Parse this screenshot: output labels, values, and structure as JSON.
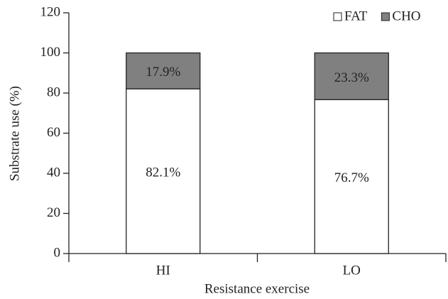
{
  "chart_data": {
    "type": "stacked_bar",
    "y_label": "Substrate use (%)",
    "x_label": "Resistance exercise",
    "categories": [
      "HI",
      "LO"
    ],
    "series": [
      {
        "name": "FAT",
        "color": "#ffffff",
        "values": [
          82.1,
          76.7
        ],
        "value_labels": [
          "82.1%",
          "76.7%"
        ]
      },
      {
        "name": "CHO",
        "color": "#808080",
        "values": [
          17.9,
          23.3
        ],
        "value_labels": [
          "17.9%",
          "23.3%"
        ]
      }
    ],
    "ylim": [
      0,
      120
    ],
    "yticks": [
      0,
      20,
      40,
      60,
      80,
      100,
      120
    ],
    "grid": false,
    "legend": "top-right"
  }
}
